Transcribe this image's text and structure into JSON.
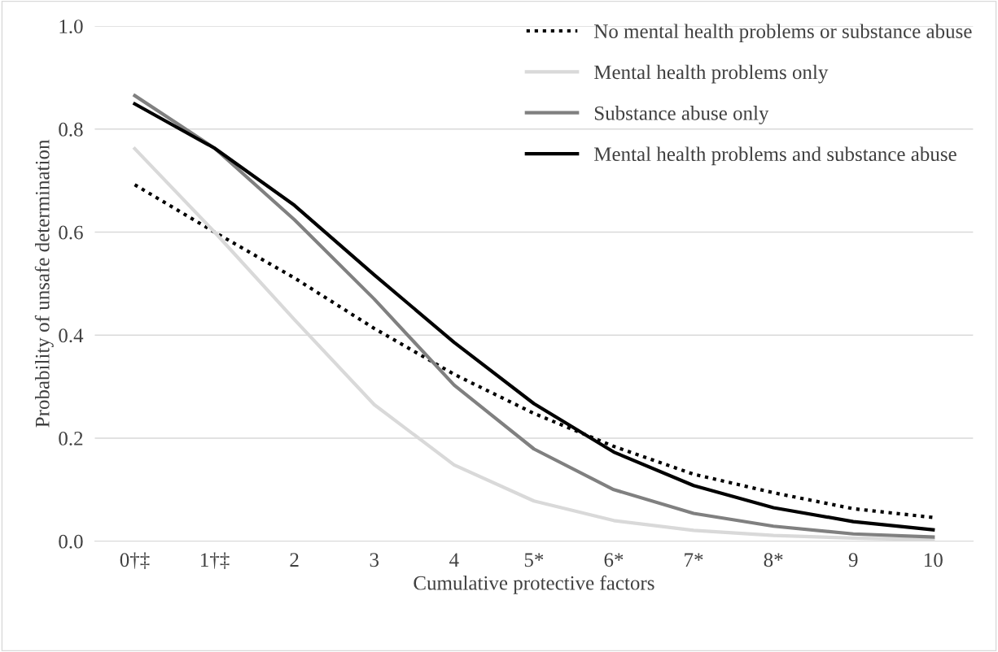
{
  "chart_data": {
    "type": "line",
    "xlabel": "Cumulative protective factors",
    "ylabel": "Probability of unsafe determination",
    "categories": [
      "0†‡",
      "1†‡",
      "2",
      "3",
      "4",
      "5*",
      "6*",
      "7*",
      "8*",
      "9",
      "10"
    ],
    "series": [
      {
        "name": "No mental health problems or substance abuse",
        "color": "#000000",
        "line_style": "dotted",
        "values": [
          0.692,
          0.6,
          0.511,
          0.413,
          0.324,
          0.248,
          0.184,
          0.13,
          0.094,
          0.063,
          0.046
        ]
      },
      {
        "name": "Mental health problems only",
        "color": "#d9d9d9",
        "line_style": "solid",
        "values": [
          0.762,
          0.6,
          0.43,
          0.265,
          0.148,
          0.078,
          0.04,
          0.021,
          0.011,
          0.006,
          0.003
        ]
      },
      {
        "name": "Substance abuse only",
        "color": "#808080",
        "line_style": "solid",
        "values": [
          0.865,
          0.763,
          0.624,
          0.47,
          0.303,
          0.179,
          0.1,
          0.054,
          0.029,
          0.014,
          0.008
        ]
      },
      {
        "name": "Mental health problems and substance abuse",
        "color": "#000000",
        "line_style": "solid",
        "values": [
          0.849,
          0.763,
          0.652,
          0.517,
          0.386,
          0.267,
          0.173,
          0.108,
          0.065,
          0.038,
          0.022
        ]
      }
    ],
    "ylim": [
      0,
      1
    ],
    "yticks": [
      {
        "value": 0,
        "label": "0.0"
      },
      {
        "value": 0.2,
        "label": "0.2"
      },
      {
        "value": 0.4,
        "label": "0.4"
      },
      {
        "value": 0.6,
        "label": "0.6"
      },
      {
        "value": 0.8,
        "label": "0.8"
      },
      {
        "value": 1,
        "label": "1.0"
      }
    ],
    "grid": "y",
    "legend": "top right",
    "marker": "none"
  }
}
